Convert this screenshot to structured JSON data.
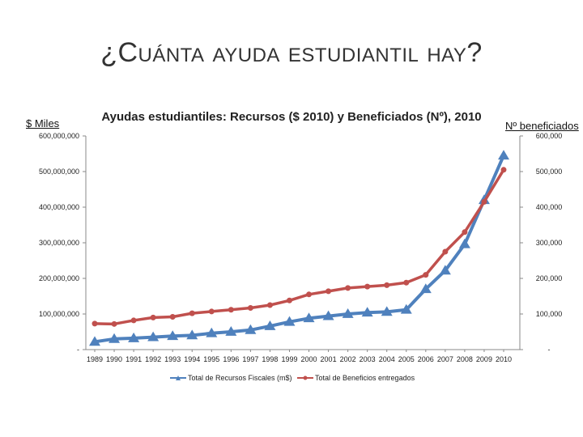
{
  "slide": {
    "title": "¿Cuánta ayuda estudiantil hay?",
    "left_unit": "$ Miles",
    "right_unit": "Nº beneficiados"
  },
  "chart_data": {
    "type": "line",
    "title": "Ayudas estudiantiles: Recursos ($ 2010) y Beneficiados (Nº), 2010",
    "x": [
      "1989",
      "1990",
      "1991",
      "1992",
      "1993",
      "1994",
      "1995",
      "1996",
      "1997",
      "1998",
      "1999",
      "2000",
      "2001",
      "2002",
      "2003",
      "2004",
      "2005",
      "2006",
      "2007",
      "2008",
      "2009",
      "2010"
    ],
    "y_left": {
      "ylim": [
        0,
        600000000
      ],
      "ticks": [
        0,
        100000000,
        200000000,
        300000000,
        400000000,
        500000000,
        600000000
      ],
      "tick_labels": [
        "-",
        "100,000,000",
        "200,000,000",
        "300,000,000",
        "400,000,000",
        "500,000,000",
        "600,000,000"
      ]
    },
    "y_right": {
      "ylim": [
        0,
        600000
      ],
      "ticks": [
        0,
        100000,
        200000,
        300000,
        400000,
        500000,
        600000
      ],
      "tick_labels": [
        "-",
        "100,000",
        "200,000",
        "300,000",
        "400,000",
        "500,000",
        "600,000"
      ]
    },
    "series": [
      {
        "name": "Total de Recursos Fiscales (m$)",
        "axis": "left",
        "color": "#4f81bd",
        "marker": "triangle",
        "values": [
          22000000,
          30000000,
          32000000,
          35000000,
          38000000,
          40000000,
          46000000,
          50000000,
          55000000,
          66000000,
          78000000,
          88000000,
          94000000,
          100000000,
          104000000,
          106000000,
          112000000,
          170000000,
          222000000,
          296000000,
          420000000,
          545000000
        ]
      },
      {
        "name": "Total de Beneficios entregados",
        "axis": "right",
        "color": "#c0504d",
        "marker": "circle",
        "values": [
          73000,
          72000,
          82000,
          90000,
          92000,
          102000,
          107000,
          112000,
          117000,
          125000,
          138000,
          155000,
          164000,
          173000,
          177000,
          181000,
          188000,
          210000,
          275000,
          330000,
          415000,
          505000
        ]
      }
    ],
    "legend": "bottom",
    "grid": false
  }
}
